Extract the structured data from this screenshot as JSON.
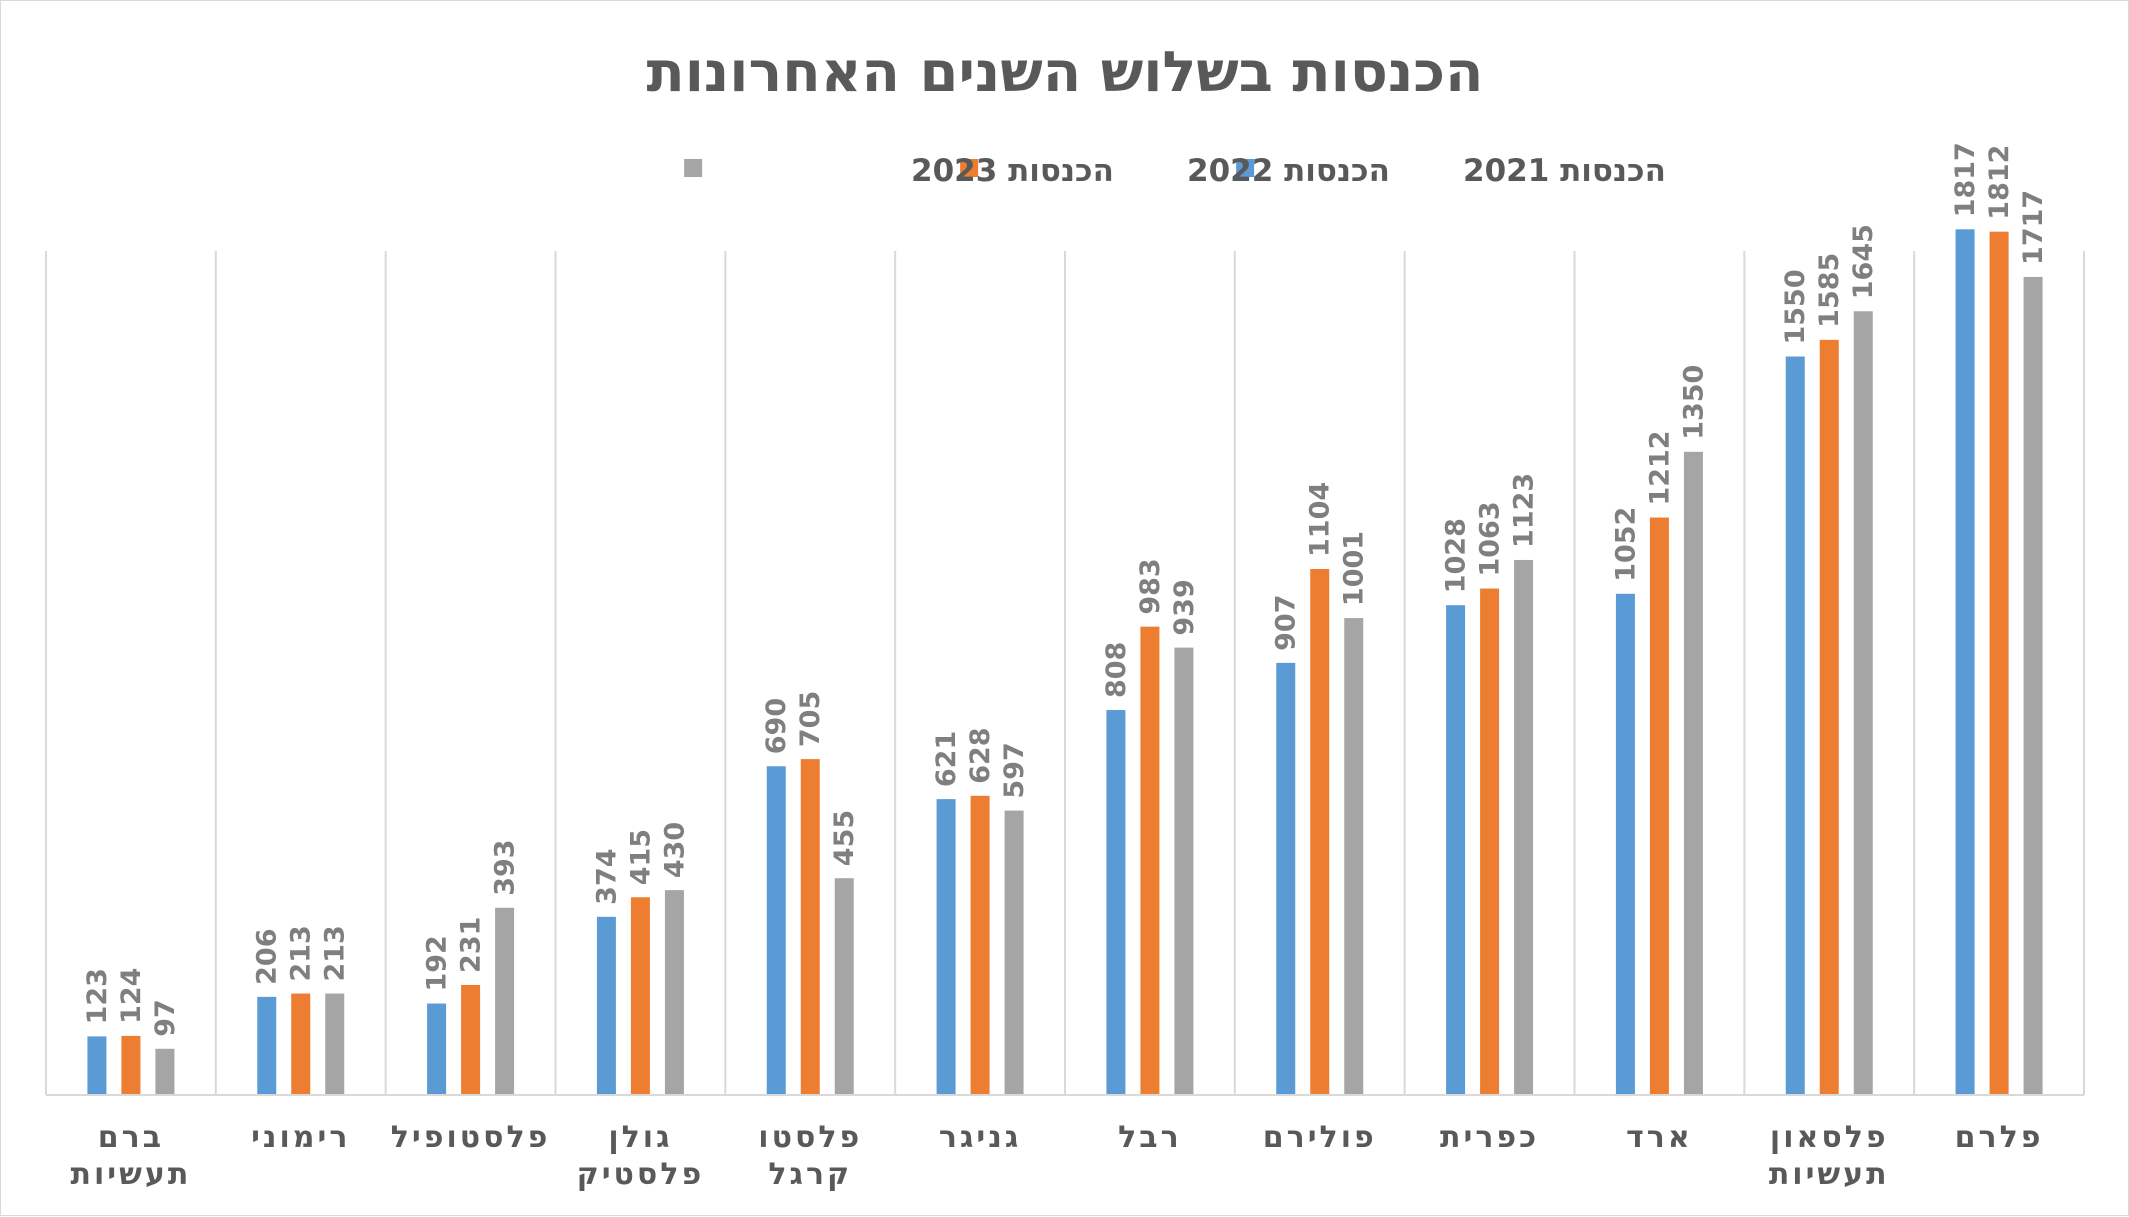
{
  "chart_data": {
    "type": "bar",
    "title": "הכנסות בשלוש השנים האחרונות",
    "legend_position": "top",
    "categories": [
      [
        "פלרם"
      ],
      [
        "פלסאון",
        "תעשיות"
      ],
      [
        "ארד"
      ],
      [
        "כפרית"
      ],
      [
        "פולירם"
      ],
      [
        "רבל"
      ],
      [
        "גניגר"
      ],
      [
        "פלסטו",
        "קרגל"
      ],
      [
        "גולן",
        "פלסטיק"
      ],
      [
        "פלסטופיל"
      ],
      [
        "רימוני"
      ],
      [
        "ברם",
        "תעשיות"
      ]
    ],
    "series": [
      {
        "name": "הכנסות 2021",
        "color": "#5b9bd5",
        "values": [
          1817,
          1550,
          1052,
          1028,
          907,
          808,
          621,
          690,
          374,
          192,
          206,
          123
        ]
      },
      {
        "name": "הכנסות 2022",
        "color": "#ed7d31",
        "values": [
          1812,
          1585,
          1212,
          1063,
          1104,
          983,
          628,
          705,
          415,
          231,
          213,
          124
        ]
      },
      {
        "name": "הכנסות 2023",
        "color": "#a5a5a5",
        "values": [
          1717,
          1645,
          1350,
          1123,
          1001,
          939,
          597,
          455,
          430,
          393,
          213,
          97
        ]
      }
    ],
    "ylim": [
      0,
      2000
    ],
    "grid": "vertical separators between categories",
    "data_labels": "rotated, above bars"
  }
}
